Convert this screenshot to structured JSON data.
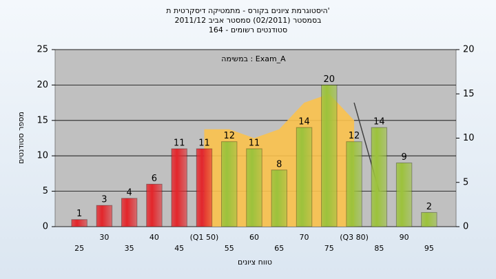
{
  "chart_data": {
    "type": "bar",
    "title": "היסטוגרמת ציונים בקורס - מתמטיקה דיסקרטית ת'",
    "subtitle": [
      "בסמסטר (02/2011) סמסטר אביב 2011/12",
      "סטודנטים רשומים - 164"
    ],
    "annotation": "במשימה : Exam_A",
    "x_label": "טווח ציונים",
    "y_label": "מספר סטודנטים",
    "categories": [
      "25",
      "30",
      "35",
      "40",
      "45",
      "(Q1 50)",
      "55",
      "60",
      "65",
      "70",
      "75",
      "(Q3 80)",
      "85",
      "90",
      "95"
    ],
    "values": [
      1,
      3,
      4,
      6,
      11,
      11,
      12,
      11,
      8,
      14,
      20,
      12,
      14,
      9,
      2
    ],
    "colors": [
      "#e3262b",
      "#e3262b",
      "#e3262b",
      "#e3262b",
      "#e3262b",
      "#e3262b",
      "#9cc23c",
      "#9cc23c",
      "#9cc23c",
      "#9cc23c",
      "#9cc23c",
      "#9cc23c",
      "#9cc23c",
      "#9cc23c",
      "#9cc23c"
    ],
    "series": [
      {
        "type": "area",
        "axis": "y2",
        "color": "#fbc24c",
        "values": [
          null,
          null,
          null,
          null,
          null,
          11,
          11,
          10,
          11,
          14,
          15,
          12,
          null,
          null,
          null
        ]
      },
      {
        "type": "line",
        "axis": "y2",
        "color": "#404040",
        "values": [
          null,
          null,
          null,
          null,
          null,
          null,
          null,
          null,
          null,
          null,
          null,
          14,
          4,
          null,
          null
        ]
      }
    ],
    "ylim": [
      0,
      25
    ],
    "yticks": [
      0,
      5,
      10,
      15,
      20,
      25
    ],
    "y2lim": [
      0,
      20
    ],
    "y2ticks": [
      0,
      5,
      10,
      15,
      20
    ],
    "grid": true
  }
}
